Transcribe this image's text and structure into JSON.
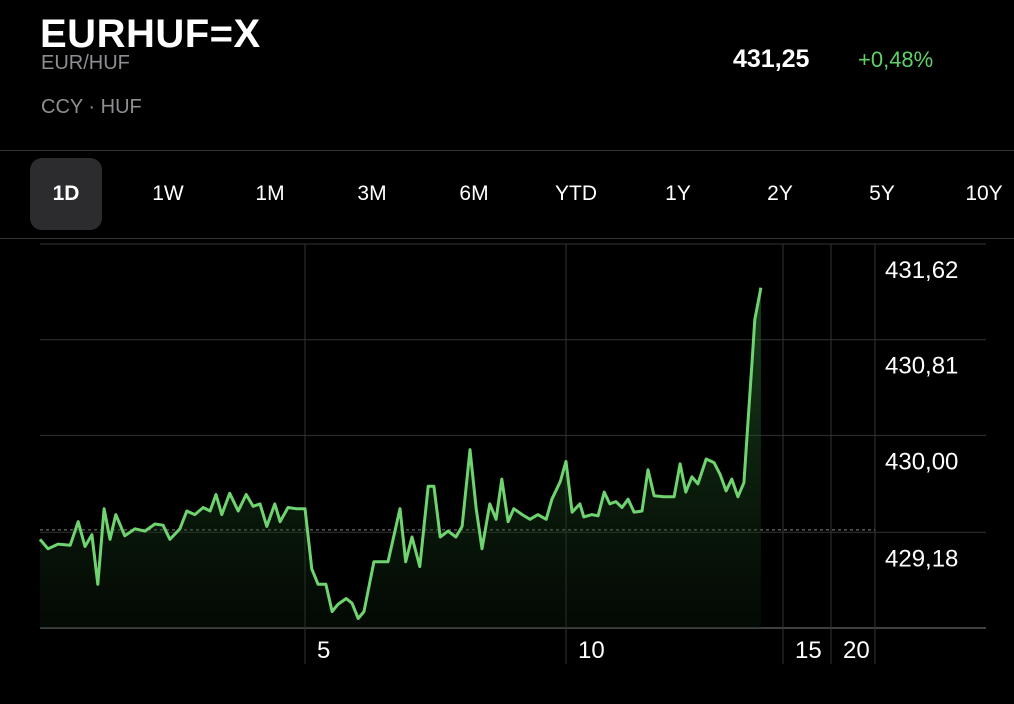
{
  "header": {
    "symbol": "EURHUF=X",
    "name": "EUR/HUF",
    "exchange": "CCY · HUF",
    "price": "431,25",
    "change": "+0,48%"
  },
  "tabs": {
    "items": [
      "1D",
      "1W",
      "1M",
      "3M",
      "6M",
      "YTD",
      "1Y",
      "2Y",
      "5Y",
      "10Y"
    ],
    "selected": "1D"
  },
  "chart_data": {
    "type": "line",
    "color": "#6fd36f",
    "x": [
      0,
      0.15,
      0.34,
      0.57,
      0.72,
      0.85,
      0.98,
      1.09,
      1.21,
      1.32,
      1.43,
      1.6,
      1.79,
      1.98,
      2.17,
      2.32,
      2.45,
      2.64,
      2.77,
      2.92,
      3.08,
      3.21,
      3.32,
      3.43,
      3.58,
      3.74,
      3.89,
      4.02,
      4.15,
      4.28,
      4.43,
      4.53,
      4.68,
      4.83,
      5,
      5.13,
      5.25,
      5.4,
      5.52,
      5.63,
      5.79,
      5.9,
      6.02,
      6.13,
      6.32,
      6.59,
      6.82,
      6.93,
      7.05,
      7.2,
      7.36,
      7.47,
      7.59,
      7.74,
      7.89,
      8.01,
      8.16,
      8.28,
      8.39,
      8.54,
      8.66,
      8.77,
      8.89,
      9.0,
      9.16,
      9.31,
      9.46,
      9.62,
      9.73,
      9.89,
      10,
      10.14,
      10.32,
      10.41,
      10.6,
      10.74,
      10.88,
      11.01,
      11.15,
      11.29,
      11.43,
      11.57,
      11.75,
      11.89,
      12.03,
      12.26,
      12.49,
      12.63,
      12.76,
      12.9,
      13.04,
      13.23,
      13.41,
      13.55,
      13.69,
      13.82,
      13.96,
      14.1,
      14.19,
      14.29,
      14.35,
      14.49
    ],
    "values": [
      429.12,
      429.04,
      429.08,
      429.07,
      429.27,
      429.06,
      429.16,
      428.74,
      429.38,
      429.12,
      429.33,
      429.15,
      429.21,
      429.19,
      429.25,
      429.24,
      429.12,
      429.21,
      429.36,
      429.33,
      429.39,
      429.36,
      429.5,
      429.33,
      429.51,
      429.36,
      429.5,
      429.4,
      429.42,
      429.23,
      429.42,
      429.27,
      429.39,
      429.38,
      429.38,
      428.87,
      428.74,
      428.74,
      428.51,
      428.57,
      428.62,
      428.58,
      428.45,
      428.51,
      428.93,
      428.93,
      429.38,
      428.93,
      429.14,
      428.89,
      429.57,
      429.57,
      429.14,
      429.19,
      429.14,
      429.23,
      429.88,
      429.38,
      429.04,
      429.42,
      429.29,
      429.63,
      429.27,
      429.38,
      429.33,
      429.29,
      429.33,
      429.29,
      429.46,
      429.61,
      429.78,
      429.35,
      429.42,
      429.31,
      429.33,
      429.32,
      429.52,
      429.42,
      429.44,
      429.39,
      429.46,
      429.35,
      429.36,
      429.71,
      429.49,
      429.48,
      429.48,
      429.76,
      429.52,
      429.65,
      429.59,
      429.8,
      429.77,
      429.67,
      429.53,
      429.63,
      429.48,
      429.6,
      430.09,
      430.64,
      430.98,
      431.25
    ],
    "previous_close": 429.2,
    "xlim": [
      0,
      24
    ],
    "xticks": [
      5,
      10,
      15,
      20
    ],
    "ylim": [
      428.37,
      431.62
    ],
    "yticks": [
      {
        "value": 431.62,
        "label": "431,62"
      },
      {
        "value": 430.81,
        "label": "430,81"
      },
      {
        "value": 430.0,
        "label": "430,00"
      },
      {
        "value": 429.18,
        "label": "429,18"
      }
    ],
    "grid": true
  }
}
